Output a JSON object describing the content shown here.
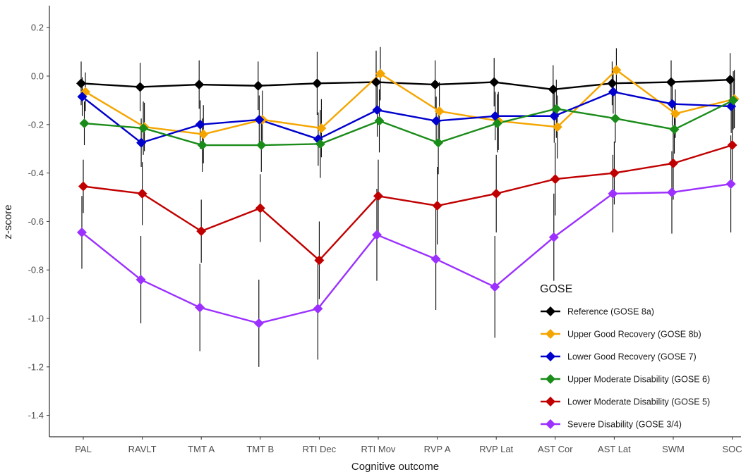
{
  "chart_data": {
    "type": "line",
    "title": "",
    "xlabel": "Cognitive outcome",
    "ylabel": "z-score",
    "categories": [
      "PAL",
      "RAVLT",
      "TMT A",
      "TMT B",
      "RTI Dec",
      "RTI Mov",
      "RVP A",
      "RVP Lat",
      "AST Cor",
      "AST Lat",
      "SWM",
      "SOC"
    ],
    "ylim": [
      -1.48,
      0.27
    ],
    "yticks": [
      -1.4,
      -1.2,
      -1.0,
      -0.8,
      -0.6,
      -0.4,
      -0.2,
      0.0,
      0.2
    ],
    "ytick_labels": [
      "-1.4",
      "-1.2",
      "-1.0",
      "-0.8",
      "-0.6",
      "-0.4",
      "-0.2",
      "0.0",
      "0.2"
    ],
    "grid": false,
    "error_bars": true,
    "legend": {
      "title": "GOSE",
      "position": "bottom-right"
    },
    "series": [
      {
        "name": "Reference (GOSE 8a)",
        "color": "#000000",
        "values": [
          -0.03,
          -0.045,
          -0.035,
          -0.04,
          -0.03,
          -0.025,
          -0.035,
          -0.025,
          -0.055,
          -0.03,
          -0.025,
          -0.015
        ],
        "error": [
          0.09,
          0.1,
          0.1,
          0.1,
          0.13,
          0.13,
          0.1,
          0.1,
          0.1,
          0.09,
          0.09,
          0.11
        ]
      },
      {
        "name": "Upper Good Recovery (GOSE 8b)",
        "color": "#F5A500",
        "values": [
          -0.065,
          -0.21,
          -0.24,
          -0.18,
          -0.215,
          0.01,
          -0.145,
          -0.185,
          -0.21,
          0.025,
          -0.155,
          -0.095
        ],
        "error": [
          0.08,
          0.1,
          0.12,
          0.12,
          0.12,
          0.11,
          0.12,
          0.12,
          0.13,
          0.09,
          0.1,
          0.12
        ]
      },
      {
        "name": "Lower Good Recovery (GOSE 7)",
        "color": "#0000CC",
        "values": [
          -0.085,
          -0.275,
          -0.2,
          -0.18,
          -0.26,
          -0.14,
          -0.185,
          -0.165,
          -0.165,
          -0.065,
          -0.115,
          -0.125
        ],
        "error": [
          0.08,
          0.1,
          0.1,
          0.1,
          0.11,
          0.11,
          0.1,
          0.1,
          0.11,
          0.09,
          0.09,
          0.11
        ]
      },
      {
        "name": "Upper Moderate Disability (GOSE 6)",
        "color": "#1A8C1A",
        "values": [
          -0.195,
          -0.215,
          -0.285,
          -0.285,
          -0.28,
          -0.185,
          -0.275,
          -0.195,
          -0.135,
          -0.175,
          -0.22,
          -0.1
        ],
        "error": [
          0.09,
          0.11,
          0.11,
          0.11,
          0.14,
          0.13,
          0.13,
          0.12,
          0.12,
          0.1,
          0.1,
          0.12
        ]
      },
      {
        "name": "Lower Moderate Disability (GOSE 5)",
        "color": "#C00000",
        "values": [
          -0.455,
          -0.485,
          -0.64,
          -0.545,
          -0.76,
          -0.495,
          -0.535,
          -0.485,
          -0.425,
          -0.4,
          -0.36,
          -0.285
        ],
        "error": [
          0.11,
          0.13,
          0.13,
          0.14,
          0.16,
          0.15,
          0.16,
          0.16,
          0.15,
          0.13,
          0.15,
          0.17
        ]
      },
      {
        "name": "Severe Disability (GOSE 3/4)",
        "color": "#9B30FF",
        "values": [
          -0.645,
          -0.84,
          -0.955,
          -1.02,
          -0.96,
          -0.655,
          -0.755,
          -0.87,
          -0.665,
          -0.485,
          -0.48,
          -0.445
        ],
        "error": [
          0.15,
          0.18,
          0.18,
          0.18,
          0.21,
          0.19,
          0.21,
          0.21,
          0.18,
          0.16,
          0.17,
          0.2
        ]
      }
    ]
  }
}
